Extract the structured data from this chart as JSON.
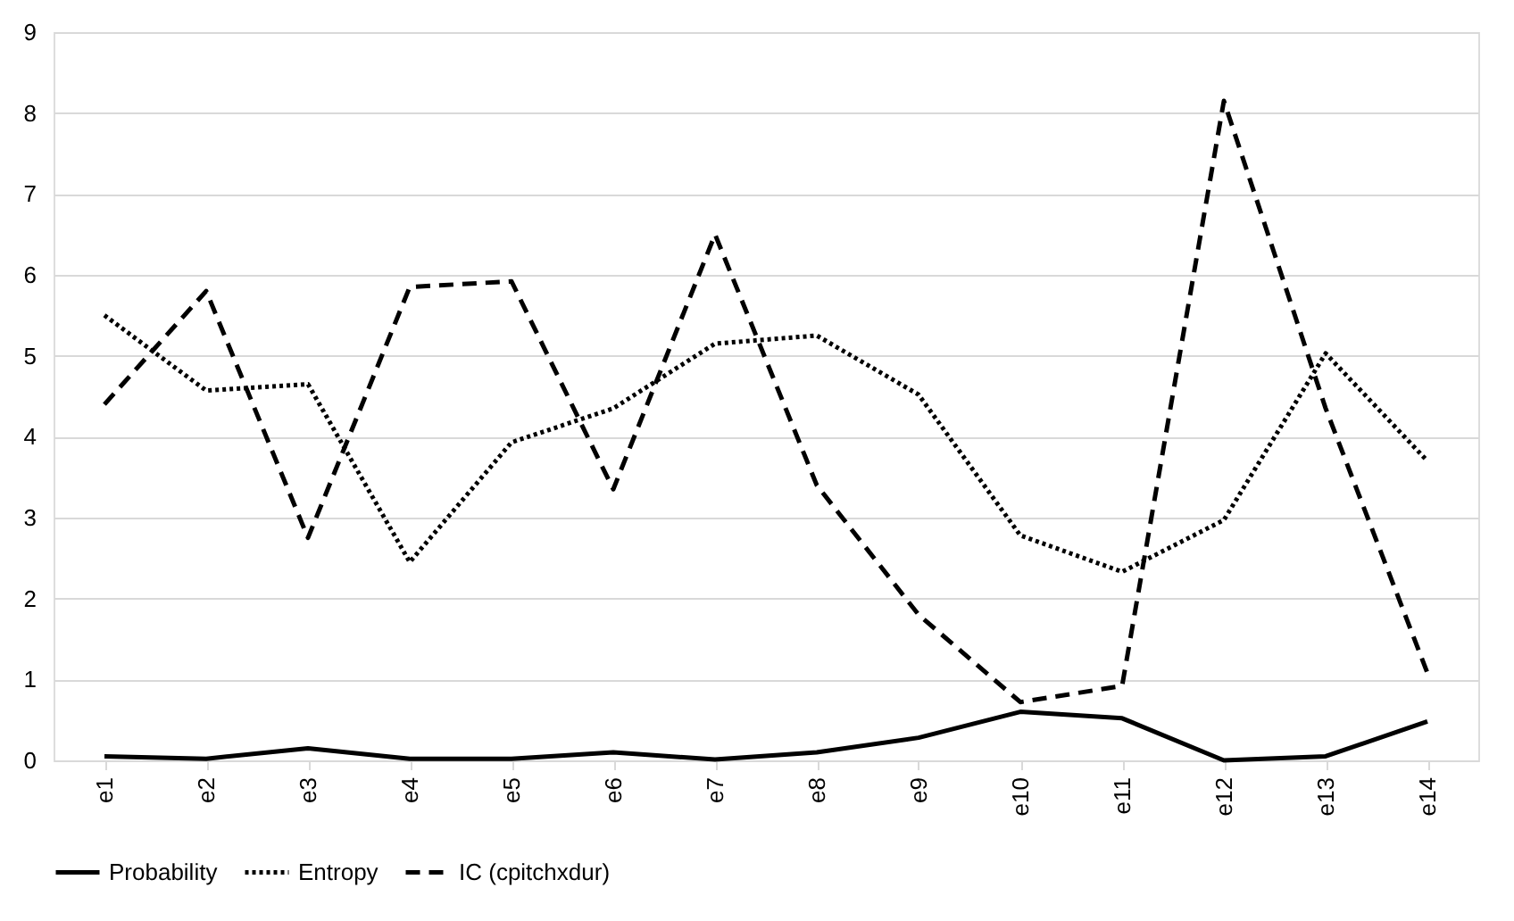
{
  "chart_data": {
    "type": "line",
    "categories": [
      "e1",
      "e2",
      "e3",
      "e4",
      "e5",
      "e6",
      "e7",
      "e8",
      "e9",
      "e10",
      "e11",
      "e12",
      "e13",
      "e14"
    ],
    "series": [
      {
        "name": "Probability",
        "color": "#000000",
        "line_style": "solid",
        "values": [
          0.05,
          0.02,
          0.15,
          0.02,
          0.02,
          0.1,
          0.01,
          0.1,
          0.28,
          0.6,
          0.52,
          0.0,
          0.05,
          0.48
        ]
      },
      {
        "name": "Entropy",
        "color": "#000000",
        "line_style": "dotted",
        "values": [
          5.5,
          4.57,
          4.65,
          2.45,
          3.93,
          4.35,
          5.15,
          5.25,
          4.52,
          2.78,
          2.33,
          2.97,
          5.03,
          3.7
        ]
      },
      {
        "name": "IC (cpitchxdur)",
        "color": "#000000",
        "line_style": "dashed",
        "values": [
          4.4,
          5.8,
          2.75,
          5.85,
          5.92,
          3.35,
          6.5,
          3.4,
          1.8,
          0.72,
          0.92,
          8.15,
          4.35,
          1.08
        ]
      }
    ],
    "ylim": [
      0,
      9
    ],
    "yticks": [
      0,
      1,
      2,
      3,
      4,
      5,
      6,
      7,
      8,
      9
    ],
    "grid": "y",
    "legend": "bottom",
    "marker": "none"
  }
}
